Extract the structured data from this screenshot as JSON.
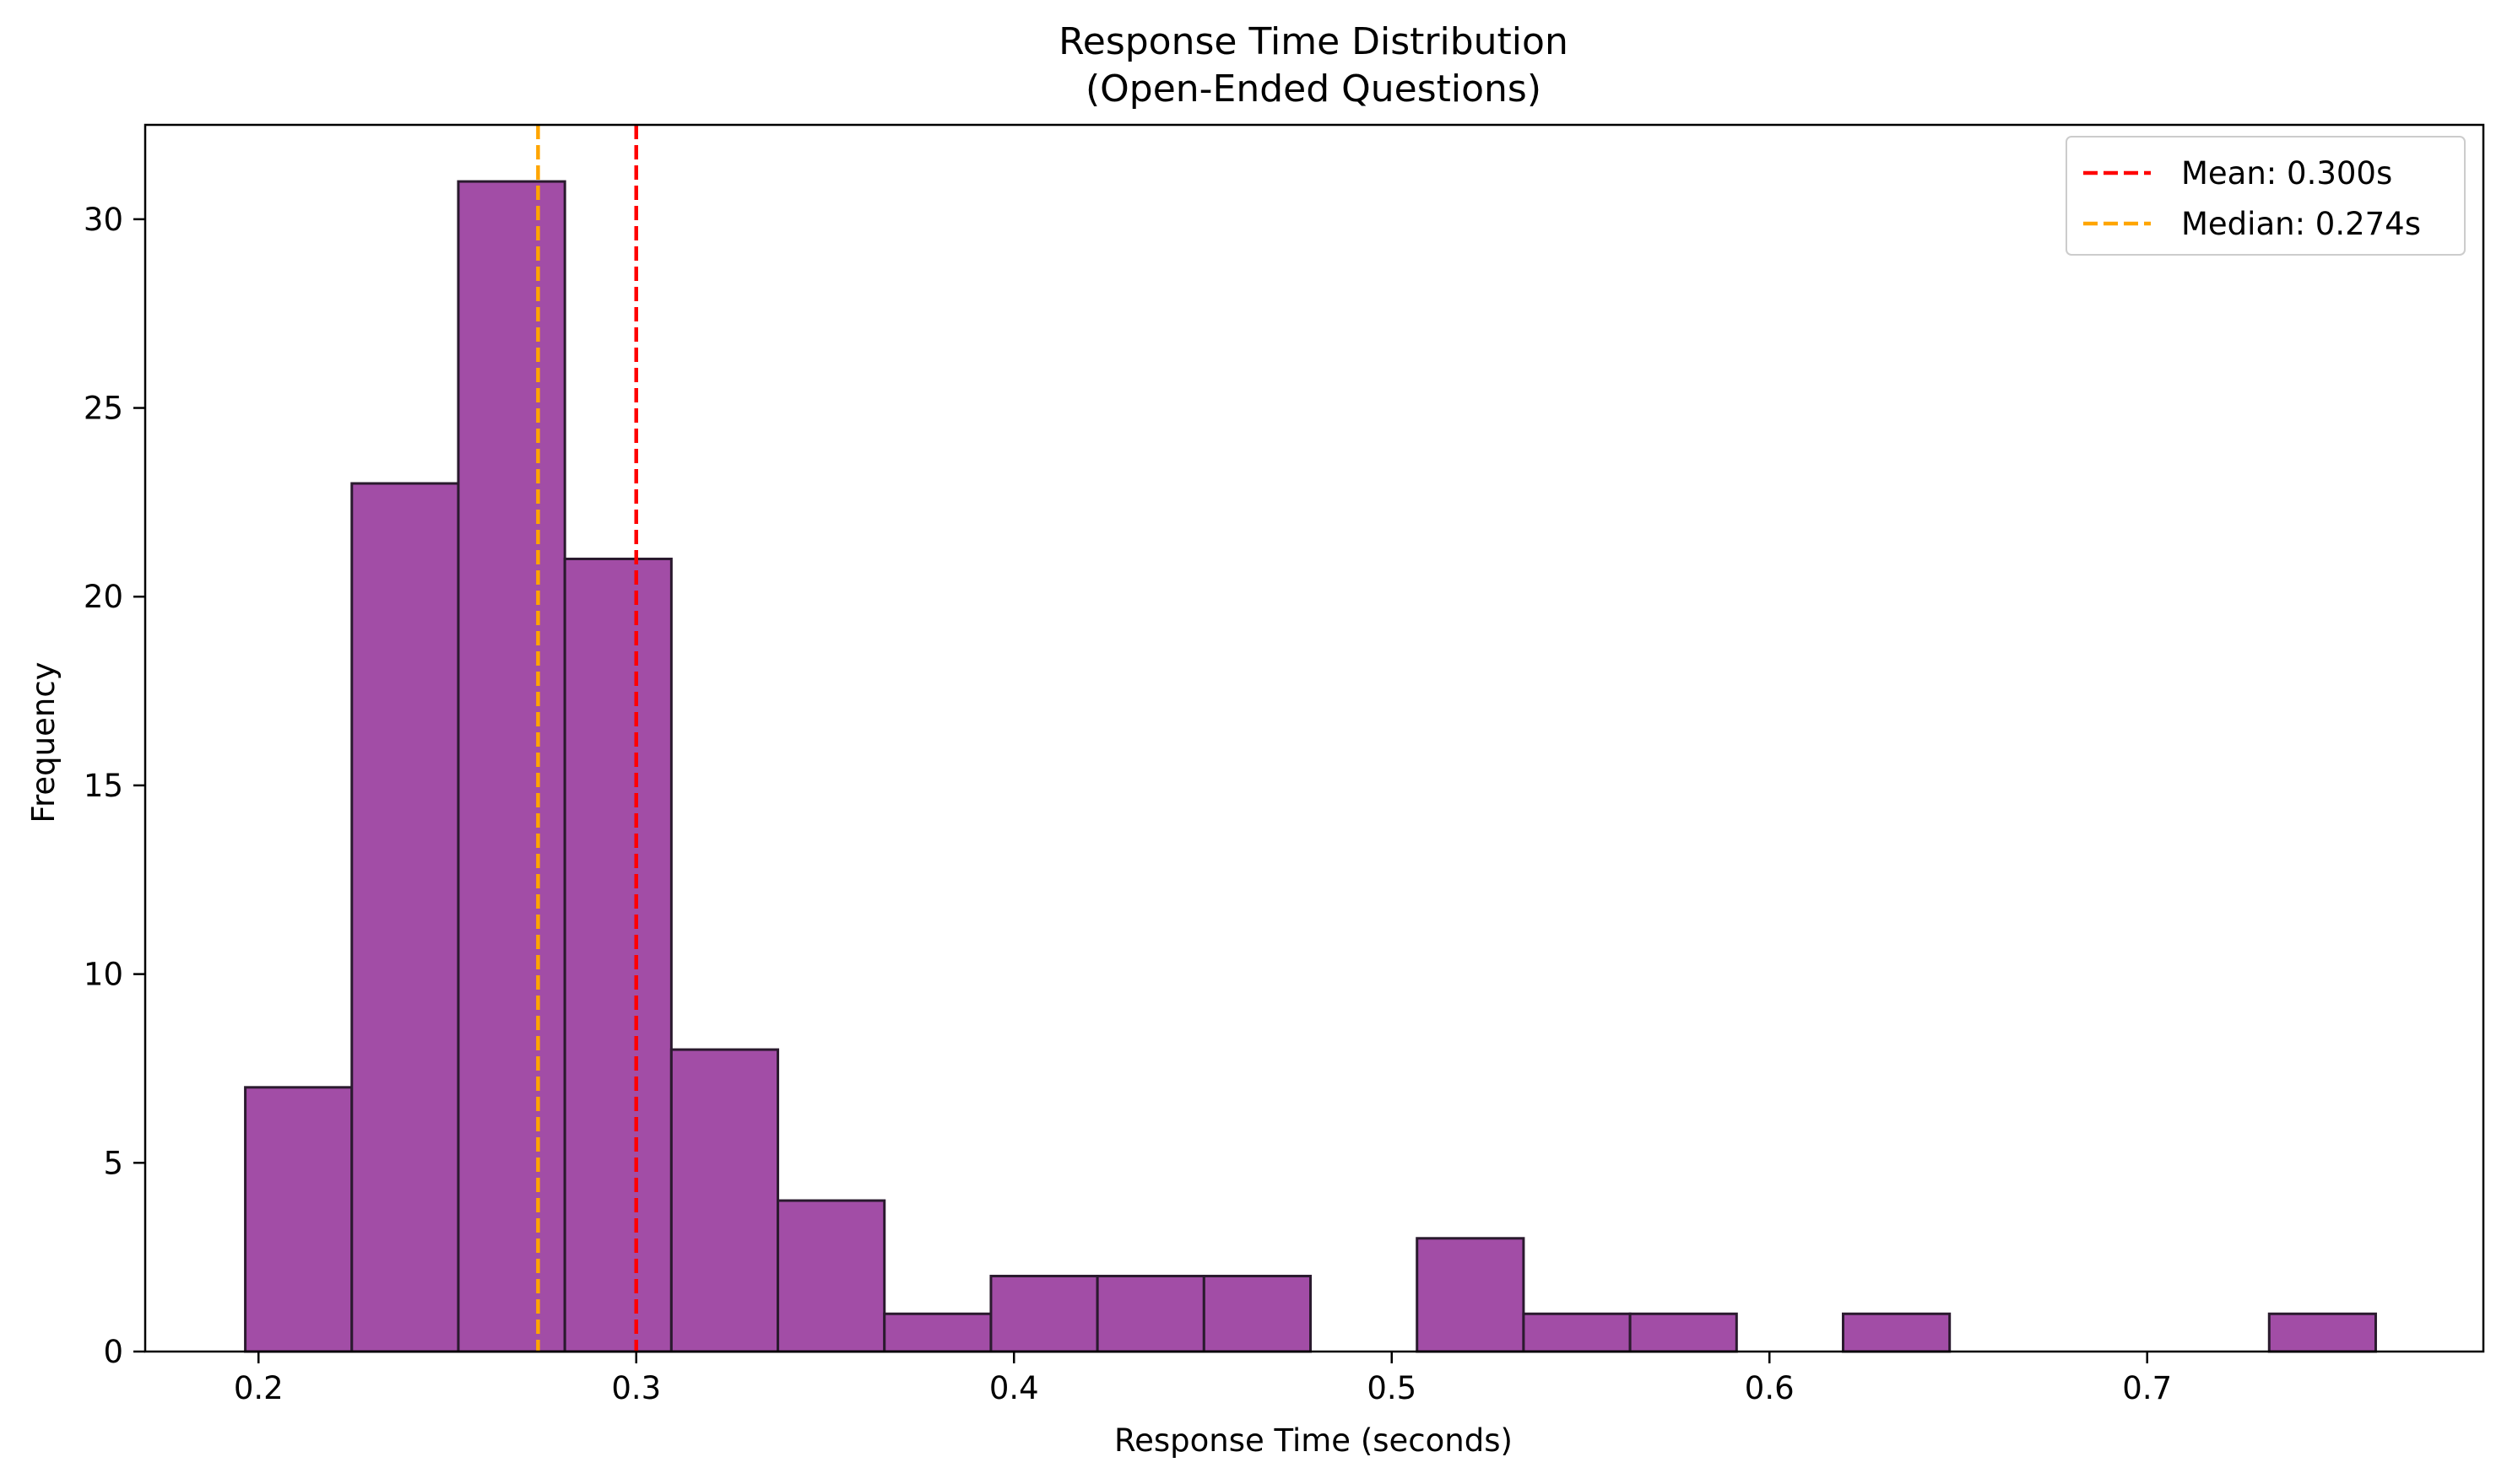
{
  "chart_data": {
    "type": "histogram",
    "title": "Response Time Distribution",
    "subtitle": "(Open-Ended Questions)",
    "xlabel": "Response Time (seconds)",
    "ylabel": "Frequency",
    "xlim": [
      0.17,
      0.789
    ],
    "ylim": [
      0,
      32.5
    ],
    "xticks": [
      0.2,
      0.3,
      0.4,
      0.5,
      0.6,
      0.7
    ],
    "xtick_labels": [
      "0.2",
      "0.3",
      "0.4",
      "0.5",
      "0.6",
      "0.7"
    ],
    "yticks": [
      0,
      5,
      10,
      15,
      20,
      25,
      30
    ],
    "ytick_labels": [
      "0",
      "5",
      "10",
      "15",
      "20",
      "25",
      "30"
    ],
    "bin_edges": [
      0.1965,
      0.2247,
      0.2529,
      0.2811,
      0.3093,
      0.3375,
      0.3657,
      0.3939,
      0.4221,
      0.4503,
      0.4785,
      0.5067,
      0.5349,
      0.5631,
      0.5913,
      0.6195,
      0.6477,
      0.6759,
      0.7041,
      0.7323,
      0.7605
    ],
    "counts": [
      7,
      23,
      31,
      21,
      8,
      4,
      1,
      2,
      2,
      2,
      0,
      3,
      1,
      1,
      0,
      1,
      0,
      0,
      0,
      1
    ],
    "bar_color": "#a24da6",
    "bar_edge_color": "#2a1a2e",
    "grid": false,
    "legend_position": "top-right",
    "reference_lines": [
      {
        "name": "Mean: 0.300s",
        "x": 0.3,
        "color": "#ff0000",
        "style": "dashed"
      },
      {
        "name": "Median: 0.274s",
        "x": 0.274,
        "color": "#ffa500",
        "style": "dashed"
      }
    ]
  }
}
